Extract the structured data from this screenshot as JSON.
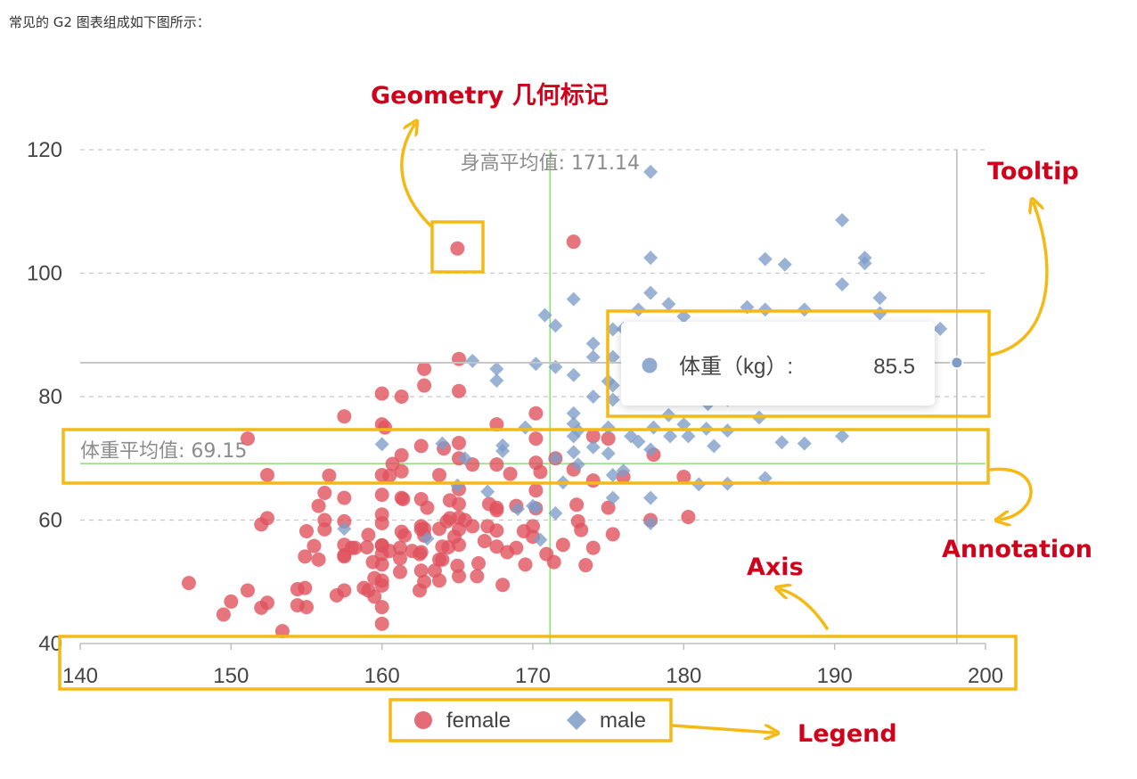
{
  "intro_text": "常见的 G2 图表组成如下图所示：",
  "callouts": {
    "geometry": "Geometry 几何标记",
    "tooltip": "Tooltip",
    "annotation": "Annotation",
    "axis": "Axis",
    "legend": "Legend"
  },
  "colors": {
    "female": "#e0525e",
    "male": "#7e9cc8",
    "callout_box": "#f4b915",
    "callout_text": "#d0021b",
    "mean_line": "#8fdc7c"
  },
  "chart_data": {
    "type": "scatter",
    "xlim": [
      140,
      200
    ],
    "ylim": [
      40,
      120
    ],
    "x_ticks": [
      "140",
      "150",
      "160",
      "170",
      "180",
      "190",
      "200"
    ],
    "y_ticks": [
      "40",
      "60",
      "80",
      "100",
      "120"
    ],
    "grid": "horizontal dashed",
    "legend_position": "bottom",
    "annotations": {
      "height_mean_label": "身高平均值: 171.14",
      "height_mean": 171.14,
      "weight_mean_label": "体重平均值: 69.15",
      "weight_mean": 69.15
    },
    "tooltip": {
      "label": "体重（kg）:",
      "value": "85.5",
      "x": 198.1,
      "y": 85.5
    },
    "series": [
      {
        "name": "female",
        "marker": "circle",
        "points": [
          [
            147.2,
            49.8
          ],
          [
            149.5,
            44.7
          ],
          [
            150.0,
            46.8
          ],
          [
            151.1,
            73.2
          ],
          [
            151.1,
            48.6
          ],
          [
            152.0,
            45.8
          ],
          [
            152.0,
            59.3
          ],
          [
            152.4,
            46.6
          ],
          [
            152.4,
            60.3
          ],
          [
            152.4,
            67.3
          ],
          [
            153.4,
            42.0
          ],
          [
            154.4,
            46.2
          ],
          [
            154.4,
            48.8
          ],
          [
            154.9,
            54.1
          ],
          [
            154.9,
            49.0
          ],
          [
            155.0,
            45.9
          ],
          [
            155.0,
            58.2
          ],
          [
            155.5,
            55.8
          ],
          [
            155.8,
            53.6
          ],
          [
            155.8,
            62.3
          ],
          [
            156.2,
            60.0
          ],
          [
            156.2,
            64.4
          ],
          [
            156.2,
            58.5
          ],
          [
            156.5,
            67.2
          ],
          [
            157.0,
            47.8
          ],
          [
            157.5,
            54.1
          ],
          [
            157.5,
            56.0
          ],
          [
            157.5,
            59.8
          ],
          [
            157.5,
            76.8
          ],
          [
            157.5,
            63.6
          ],
          [
            157.5,
            54.3
          ],
          [
            157.5,
            48.6
          ],
          [
            158.0,
            55.5
          ],
          [
            158.8,
            49.0
          ],
          [
            159.0,
            55.6
          ],
          [
            159.1,
            48.6
          ],
          [
            159.1,
            57.6
          ],
          [
            159.4,
            53.2
          ],
          [
            159.5,
            50.6
          ],
          [
            159.5,
            47.6
          ],
          [
            160.0,
            59.5
          ],
          [
            160.0,
            55.9
          ],
          [
            160.0,
            64.1
          ],
          [
            160.0,
            80.5
          ],
          [
            160.0,
            52.8
          ],
          [
            160.0,
            49.4
          ],
          [
            160.0,
            75.5
          ],
          [
            160.0,
            54.5
          ],
          [
            160.0,
            45.9
          ],
          [
            160.0,
            43.2
          ],
          [
            160.0,
            50.2
          ],
          [
            160.0,
            55.9
          ],
          [
            160.0,
            60.9
          ],
          [
            160.0,
            67.3
          ],
          [
            160.2,
            75.0
          ],
          [
            160.5,
            55.0
          ],
          [
            160.7,
            69.1
          ],
          [
            161.2,
            51.6
          ],
          [
            161.2,
            55.5
          ],
          [
            161.2,
            53.8
          ],
          [
            161.3,
            67.9
          ],
          [
            161.3,
            80.0
          ],
          [
            161.3,
            58.1
          ],
          [
            161.3,
            63.6
          ],
          [
            161.3,
            70.5
          ],
          [
            161.4,
            63.4
          ],
          [
            161.5,
            57.5
          ],
          [
            162.0,
            55.0
          ],
          [
            162.5,
            48.6
          ],
          [
            162.5,
            54.5
          ],
          [
            162.6,
            59.0
          ],
          [
            162.6,
            63.4
          ],
          [
            162.6,
            54.8
          ],
          [
            162.6,
            58.5
          ],
          [
            162.6,
            72.0
          ],
          [
            162.6,
            51.8
          ],
          [
            162.8,
            50.0
          ],
          [
            162.8,
            84.5
          ],
          [
            162.8,
            81.8
          ],
          [
            162.8,
            57.5
          ],
          [
            162.8,
            58.6
          ],
          [
            163.0,
            62.0
          ],
          [
            163.5,
            51.8
          ],
          [
            163.8,
            58.6
          ],
          [
            163.8,
            67.3
          ],
          [
            163.8,
            53.6
          ],
          [
            163.8,
            50.2
          ],
          [
            164.0,
            55.7
          ],
          [
            164.0,
            53.6
          ],
          [
            164.1,
            71.6
          ],
          [
            164.3,
            59.8
          ],
          [
            164.4,
            55.6
          ],
          [
            164.5,
            63.2
          ],
          [
            164.5,
            60.3
          ],
          [
            165.0,
            104.0
          ],
          [
            165.0,
            52.6
          ],
          [
            165.1,
            58.5
          ],
          [
            165.1,
            50.9
          ],
          [
            165.1,
            60.4
          ],
          [
            165.1,
            56.0
          ],
          [
            165.1,
            62.6
          ],
          [
            165.1,
            65.0
          ],
          [
            165.1,
            70.0
          ],
          [
            165.1,
            72.5
          ],
          [
            165.1,
            86.1
          ],
          [
            165.1,
            80.9
          ],
          [
            165.5,
            60.0
          ],
          [
            166.0,
            59.0
          ],
          [
            166.0,
            69.0
          ],
          [
            166.4,
            53.0
          ],
          [
            166.8,
            56.6
          ],
          [
            167.0,
            59.0
          ],
          [
            167.1,
            62.6
          ],
          [
            167.6,
            55.7
          ],
          [
            167.6,
            58.3
          ],
          [
            167.6,
            62.0
          ],
          [
            167.6,
            69.0
          ],
          [
            167.6,
            75.5
          ],
          [
            167.6,
            61.6
          ],
          [
            168.0,
            49.5
          ],
          [
            168.3,
            54.8
          ],
          [
            168.5,
            67.5
          ],
          [
            168.9,
            55.5
          ],
          [
            168.9,
            62.3
          ],
          [
            169.4,
            58.2
          ],
          [
            169.5,
            52.8
          ],
          [
            170.0,
            57.3
          ],
          [
            170.0,
            59.0
          ],
          [
            170.2,
            61.9
          ],
          [
            170.2,
            64.8
          ],
          [
            170.2,
            69.3
          ],
          [
            170.2,
            73.2
          ],
          [
            170.2,
            77.3
          ],
          [
            170.5,
            67.8
          ],
          [
            170.9,
            54.5
          ],
          [
            171.4,
            53.2
          ],
          [
            171.5,
            70.0
          ],
          [
            172.0,
            56.0
          ],
          [
            172.7,
            105.1
          ],
          [
            172.7,
            68.2
          ],
          [
            172.9,
            62.5
          ],
          [
            173.0,
            59.8
          ],
          [
            173.2,
            58.4
          ],
          [
            173.5,
            52.7
          ],
          [
            174.0,
            55.5
          ],
          [
            174.0,
            66.4
          ],
          [
            174.0,
            73.6
          ],
          [
            175.0,
            62.0
          ],
          [
            175.0,
            73.2
          ],
          [
            175.3,
            57.7
          ],
          [
            176.0,
            67.0
          ],
          [
            176.5,
            84.5
          ],
          [
            177.8,
            60.0
          ],
          [
            178.0,
            70.6
          ],
          [
            180.0,
            67.0
          ],
          [
            180.3,
            60.5
          ],
          [
            160.5,
            67.2
          ],
          [
            158.2,
            55.5
          ],
          [
            164.8,
            57.3
          ],
          [
            166.3,
            50.9
          ]
        ]
      },
      {
        "name": "male",
        "marker": "diamond",
        "points": [
          [
            157.5,
            58.6
          ],
          [
            160.0,
            72.3
          ],
          [
            163.0,
            57.0
          ],
          [
            164.0,
            72.4
          ],
          [
            165.0,
            65.6
          ],
          [
            165.5,
            70.0
          ],
          [
            166.0,
            85.8
          ],
          [
            167.0,
            64.6
          ],
          [
            167.6,
            84.5
          ],
          [
            167.6,
            82.6
          ],
          [
            168.0,
            71.2
          ],
          [
            168.0,
            72.1
          ],
          [
            169.0,
            61.8
          ],
          [
            169.5,
            75.0
          ],
          [
            170.0,
            62.3
          ],
          [
            170.2,
            85.3
          ],
          [
            170.2,
            62.0
          ],
          [
            170.5,
            56.8
          ],
          [
            170.8,
            93.2
          ],
          [
            171.5,
            70.0
          ],
          [
            171.5,
            91.5
          ],
          [
            171.5,
            84.8
          ],
          [
            171.5,
            61.1
          ],
          [
            172.0,
            66.1
          ],
          [
            172.7,
            83.5
          ],
          [
            172.7,
            95.8
          ],
          [
            172.7,
            77.3
          ],
          [
            172.7,
            75.6
          ],
          [
            172.7,
            73.6
          ],
          [
            172.7,
            71.0
          ],
          [
            173.0,
            69.0
          ],
          [
            173.0,
            74.5
          ],
          [
            174.0,
            80.0
          ],
          [
            174.0,
            86.4
          ],
          [
            174.0,
            88.6
          ],
          [
            174.0,
            71.8
          ],
          [
            175.0,
            82.5
          ],
          [
            175.0,
            70.8
          ],
          [
            175.3,
            79.5
          ],
          [
            175.3,
            63.6
          ],
          [
            175.3,
            86.4
          ],
          [
            175.3,
            90.9
          ],
          [
            175.3,
            67.3
          ],
          [
            175.3,
            81.8
          ],
          [
            176.0,
            68.0
          ],
          [
            176.5,
            73.6
          ],
          [
            176.5,
            83.0
          ],
          [
            177.0,
            72.7
          ],
          [
            177.0,
            94.1
          ],
          [
            177.8,
            59.5
          ],
          [
            177.8,
            63.6
          ],
          [
            177.8,
            102.5
          ],
          [
            177.8,
            96.8
          ],
          [
            177.8,
            86.4
          ],
          [
            177.8,
            116.4
          ],
          [
            177.8,
            71.4
          ],
          [
            178.0,
            89.6
          ],
          [
            178.0,
            80.0
          ],
          [
            179.0,
            77.0
          ],
          [
            179.1,
            73.6
          ],
          [
            180.0,
            88.4
          ],
          [
            180.0,
            93.0
          ],
          [
            180.0,
            75.5
          ],
          [
            180.3,
            73.6
          ],
          [
            180.3,
            83.2
          ],
          [
            180.3,
            82.8
          ],
          [
            180.3,
            90.0
          ],
          [
            181.0,
            65.8
          ],
          [
            181.5,
            74.8
          ],
          [
            181.6,
            78.8
          ],
          [
            182.0,
            72.0
          ],
          [
            182.0,
            82.5
          ],
          [
            182.0,
            88.2
          ],
          [
            182.9,
            88.7
          ],
          [
            182.9,
            79.5
          ],
          [
            182.9,
            65.9
          ],
          [
            182.9,
            74.5
          ],
          [
            183.5,
            87.7
          ],
          [
            184.2,
            80.1
          ],
          [
            184.2,
            94.5
          ],
          [
            185.0,
            76.6
          ],
          [
            185.4,
            94.1
          ],
          [
            185.4,
            102.3
          ],
          [
            185.4,
            66.8
          ],
          [
            186.5,
            72.6
          ],
          [
            186.7,
            101.4
          ],
          [
            186.7,
            87.8
          ],
          [
            187.0,
            81.0
          ],
          [
            188.0,
            72.4
          ],
          [
            188.0,
            94.1
          ],
          [
            188.0,
            83.0
          ],
          [
            189.2,
            84.1
          ],
          [
            190.5,
            108.6
          ],
          [
            190.5,
            73.6
          ],
          [
            190.5,
            98.2
          ],
          [
            190.5,
            89.1
          ],
          [
            191.0,
            90.0
          ],
          [
            192.0,
            101.6
          ],
          [
            192.0,
            102.5
          ],
          [
            193.0,
            96.0
          ],
          [
            193.0,
            93.5
          ],
          [
            193.5,
            80.7
          ],
          [
            195.0,
            86.0
          ],
          [
            197.0,
            91.0
          ],
          [
            175.0,
            75.0
          ],
          [
            179.0,
            95.0
          ],
          [
            176.0,
            91.0
          ],
          [
            181.0,
            86.0
          ],
          [
            184.0,
            90.0
          ],
          [
            178.0,
            75.0
          ]
        ]
      }
    ]
  }
}
